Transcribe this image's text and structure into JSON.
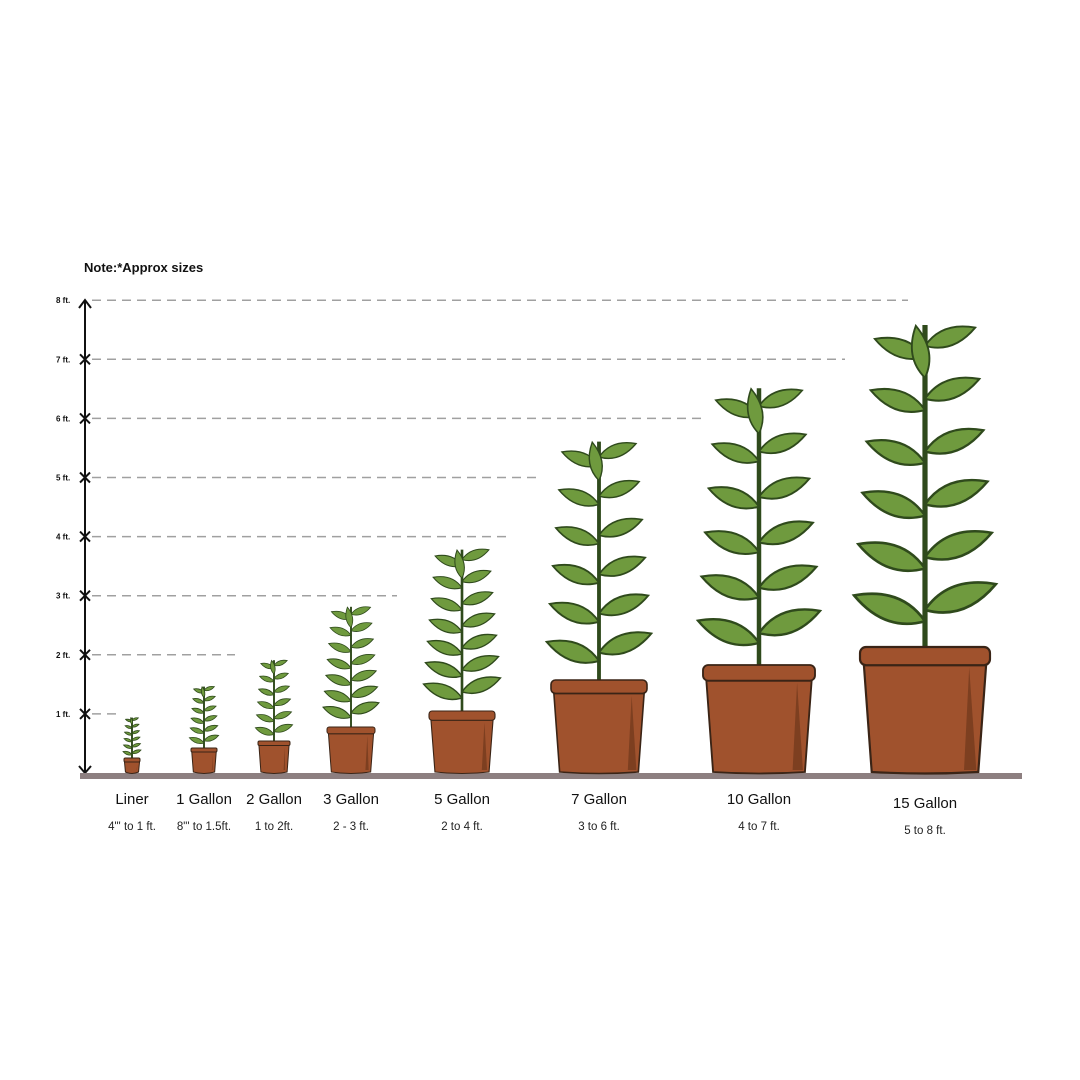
{
  "note": "Note:*Approx sizes",
  "axis": {
    "ticks": [
      "1 ft.",
      "2 ft.",
      "3 ft.",
      "4 ft.",
      "5 ft.",
      "6 ft.",
      "7 ft.",
      "8 ft."
    ]
  },
  "colors": {
    "leaf": "#6f9a3e",
    "leaf_outline": "#2f4a1c",
    "pot": "#a0522d",
    "pot_shade": "#7d3f20",
    "pot_outline": "#3a2416",
    "ground": "#8d7f80",
    "dashed_line": "#a0a0a0"
  },
  "sizes": [
    {
      "name": "Liner",
      "range": "4\"' to 1 ft."
    },
    {
      "name": "1 Gallon",
      "range": "8\"' to 1.5ft."
    },
    {
      "name": "2 Gallon",
      "range": "1 to 2ft."
    },
    {
      "name": "3 Gallon",
      "range": "2 - 3 ft."
    },
    {
      "name": "5 Gallon",
      "range": "2 to 4 ft."
    },
    {
      "name": "7 Gallon",
      "range": "3 to 6 ft."
    },
    {
      "name": "10 Gallon",
      "range": "4 to 7 ft."
    },
    {
      "name": "15 Gallon",
      "range": "5 to 8 ft."
    }
  ]
}
